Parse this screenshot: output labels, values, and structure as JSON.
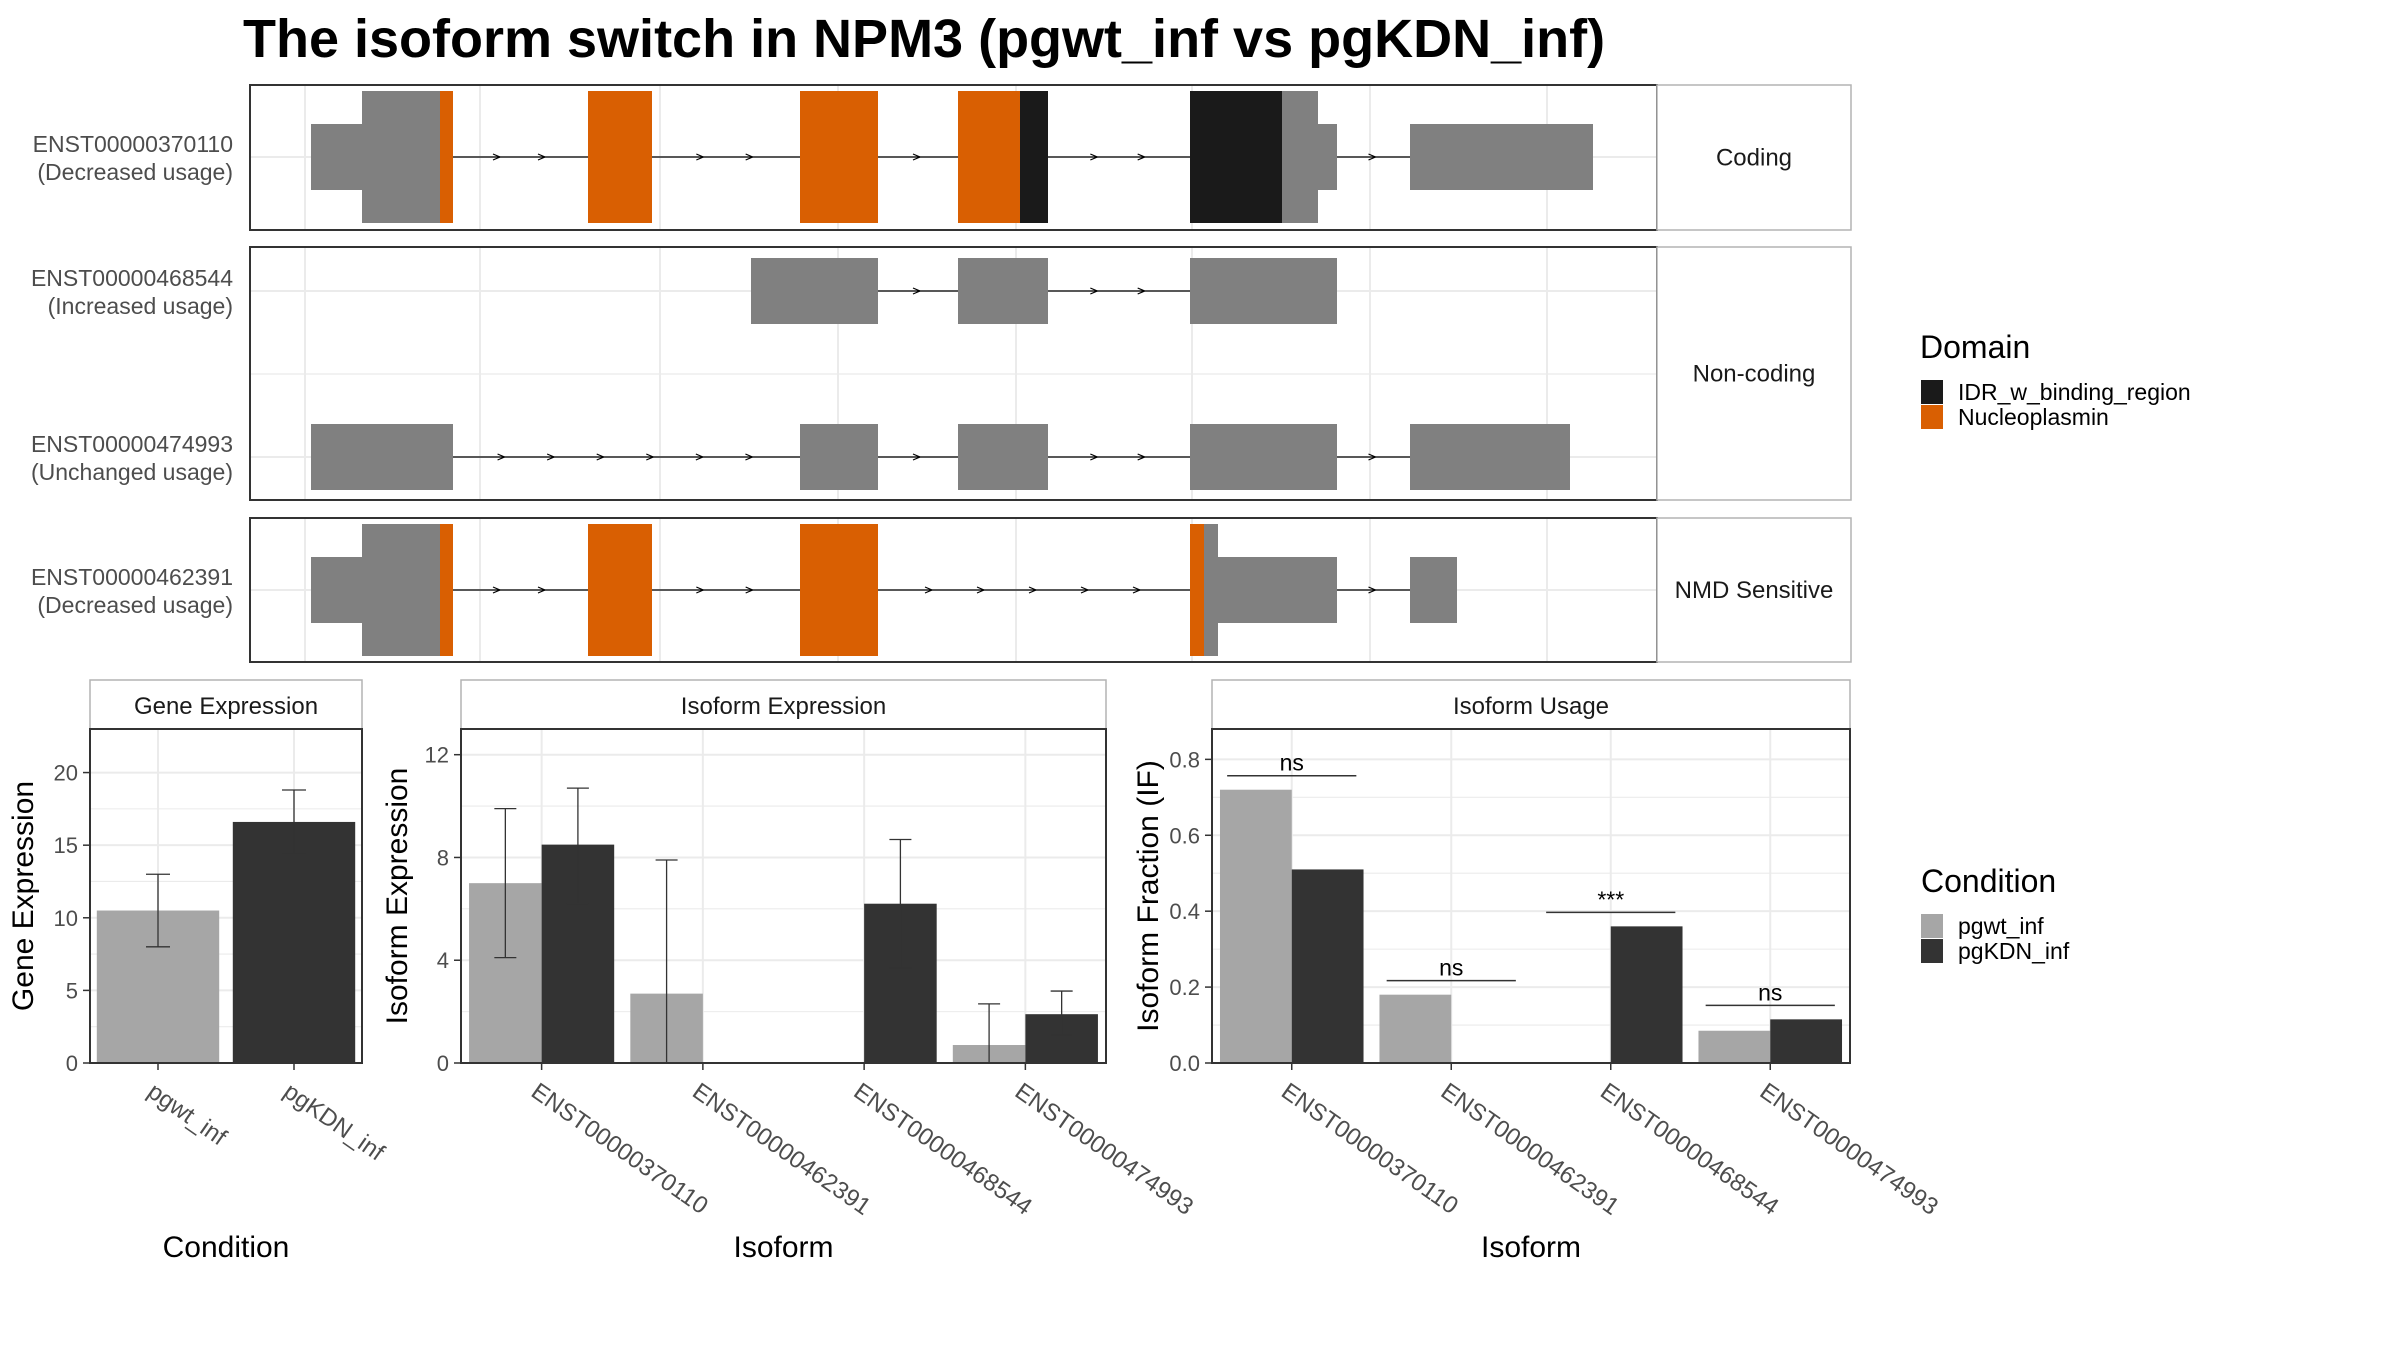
{
  "title": "The isoform switch in NPM3 (pgwt_inf vs pgKDN_inf)",
  "colors": {
    "nucleoplasmin": "#D95F02",
    "idr": "#1A1A1A",
    "exon": "#808080",
    "pgwt_inf": "#A6A6A6",
    "pgKDN_inf": "#333333",
    "strip_bg": "#FFFFFF",
    "grid": "#EBEBEB",
    "panel_border": "#333333"
  },
  "structure": {
    "facets": [
      "Coding",
      "Non-coding",
      "NMD Sensitive"
    ],
    "transcripts": [
      {
        "id": "ENST00000370110",
        "label1": "ENST00000370110",
        "label2": "(Decreased usage)",
        "facet": "Coding"
      },
      {
        "id": "ENST00000468544",
        "label1": "ENST00000468544",
        "label2": "(Increased usage)",
        "facet": "Non-coding"
      },
      {
        "id": "ENST00000474993",
        "label1": "ENST00000474993",
        "label2": "(Unchanged usage)",
        "facet": "Non-coding"
      },
      {
        "id": "ENST00000462391",
        "label1": "ENST00000462391",
        "label2": "(Decreased usage)",
        "facet": "NMD Sensitive"
      }
    ],
    "domain_legend_title": "Domain",
    "domain_legend": [
      "IDR_w_binding_region",
      "Nucleoplasmin"
    ]
  },
  "chart_data": [
    {
      "type": "bar",
      "title": "Gene Expression",
      "xlabel": "Condition",
      "ylabel": "Gene Expression",
      "categories": [
        "pgwt_inf",
        "pgKDN_inf"
      ],
      "values": [
        10.5,
        16.6
      ],
      "error_low": [
        8.0,
        14.4
      ],
      "error_high": [
        13.0,
        18.8
      ],
      "ylim": [
        0,
        23.0
      ],
      "yticks": [
        0,
        5,
        10,
        15,
        20
      ]
    },
    {
      "type": "bar",
      "title": "Isoform Expression",
      "xlabel": "Isoform",
      "ylabel": "Isoform Expression",
      "categories": [
        "ENST00000370110",
        "ENST00000462391",
        "ENST00000468544",
        "ENST00000474993"
      ],
      "series": [
        {
          "name": "pgwt_inf",
          "values": [
            7.0,
            2.7,
            0,
            0.7
          ],
          "error_low": [
            4.1,
            0,
            null,
            0
          ],
          "error_high": [
            9.9,
            7.9,
            null,
            2.3
          ]
        },
        {
          "name": "pgKDN_inf",
          "values": [
            8.5,
            0,
            6.2,
            1.9
          ],
          "error_low": [
            6.2,
            null,
            3.7,
            1.1
          ],
          "error_high": [
            10.7,
            null,
            8.7,
            2.8
          ]
        }
      ],
      "ylim": [
        0,
        13.0
      ],
      "yticks": [
        0,
        4,
        8,
        12
      ]
    },
    {
      "type": "bar",
      "title": "Isoform Usage",
      "xlabel": "Isoform",
      "ylabel": "Isoform Fraction (IF)",
      "categories": [
        "ENST00000370110",
        "ENST00000462391",
        "ENST00000468544",
        "ENST00000474993"
      ],
      "series": [
        {
          "name": "pgwt_inf",
          "values": [
            0.72,
            0.18,
            0,
            0.085
          ]
        },
        {
          "name": "pgKDN_inf",
          "values": [
            0.51,
            0,
            0.36,
            0.115
          ]
        }
      ],
      "significance": [
        "ns",
        "ns",
        "***",
        "ns"
      ],
      "ylim": [
        0,
        0.88
      ],
      "yticks": [
        "0.0",
        "0.2",
        "0.4",
        "0.6",
        "0.8"
      ]
    }
  ],
  "condition_legend": {
    "title": "Condition",
    "items": [
      "pgwt_inf",
      "pgKDN_inf"
    ]
  }
}
